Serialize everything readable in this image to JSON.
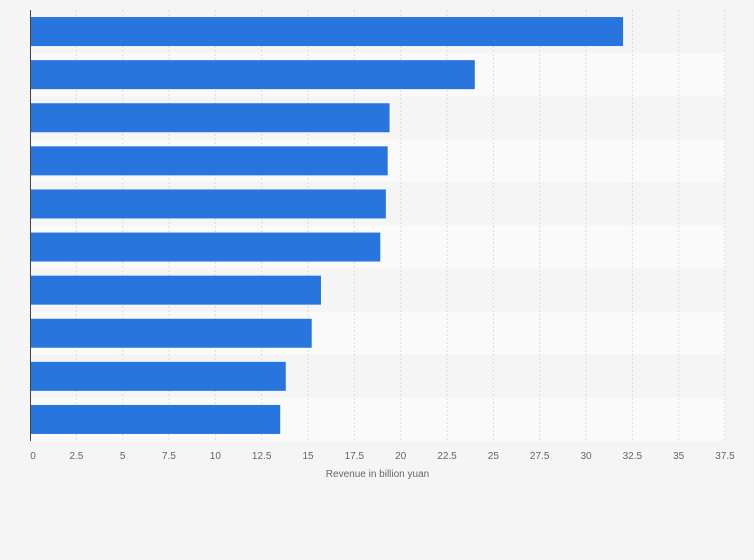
{
  "chart_data": {
    "type": "bar",
    "orientation": "horizontal",
    "categories": [
      "",
      "",
      "",
      "",
      "",
      "",
      "",
      "",
      "",
      ""
    ],
    "values": [
      32,
      24,
      19.4,
      19.3,
      19.2,
      18.9,
      15.7,
      15.2,
      13.8,
      13.5
    ],
    "xlabel": "Revenue in billion yuan",
    "ylabel": "",
    "xlim": [
      0,
      37.5
    ],
    "x_ticks": [
      "0",
      "2.5",
      "5",
      "7.5",
      "10",
      "12.5",
      "15",
      "17.5",
      "20",
      "22.5",
      "25",
      "27.5",
      "30",
      "32.5",
      "35",
      "37.5"
    ],
    "grid": "vertical dashed",
    "bar_color": "#2876dd",
    "band_colors": [
      "#f5f5f5",
      "#fafafa"
    ]
  }
}
